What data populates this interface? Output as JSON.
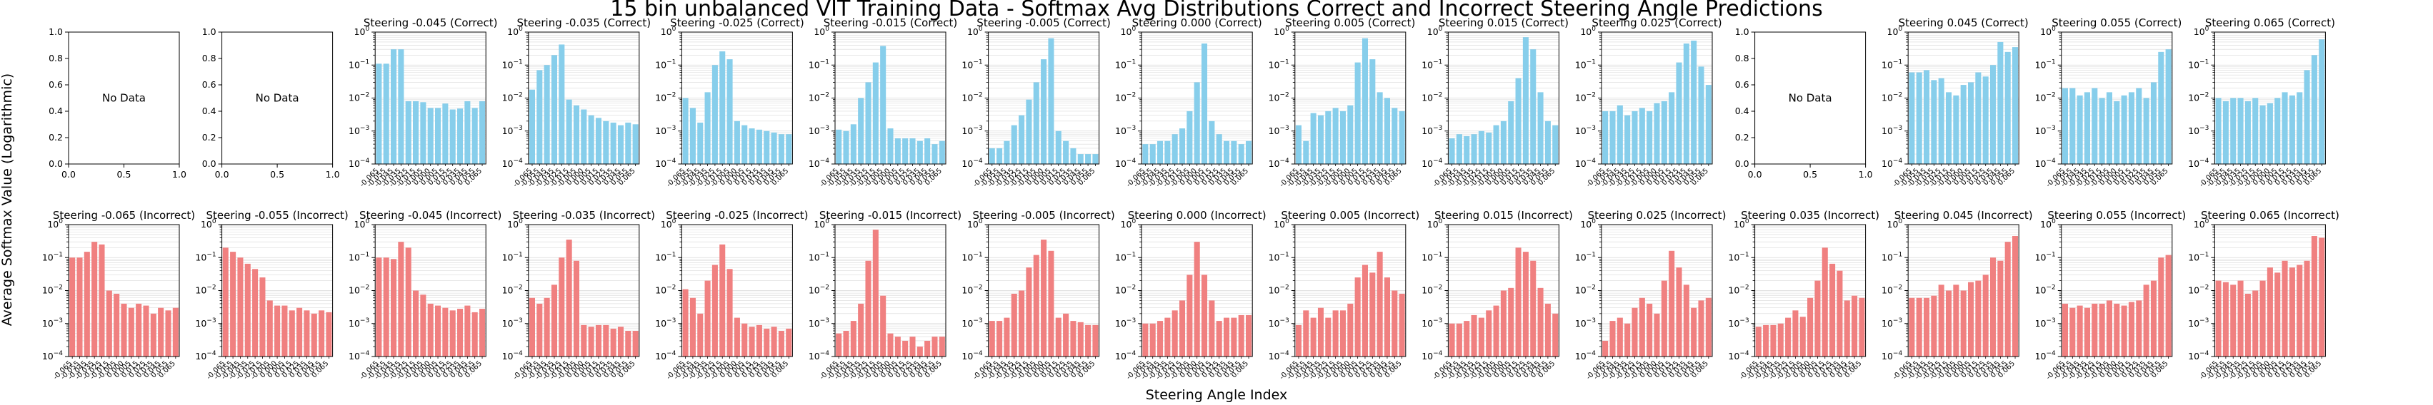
{
  "title": "15 bin unbalanced VIT Training Data - Softmax Avg Distributions Correct and Incorrect Steering Angle Predictions",
  "xlabel": "Steering Angle Index",
  "ylabel": "Average Softmax Value (Logarithmic)",
  "colors": {
    "correct": "#87ceeb",
    "incorrect": "#f08080",
    "grid": "#d9d9d9"
  },
  "x_tick_labels": [
    "-0.065",
    "-0.055",
    "-0.045",
    "-0.035",
    "-0.025",
    "-0.015",
    "-0.005",
    "0.000",
    "0.005",
    "0.015",
    "0.025",
    "0.035",
    "0.045",
    "0.055",
    "0.065"
  ],
  "no_data_text": "No Data",
  "y_exponents": [
    -4,
    -3,
    -2,
    -1,
    0
  ],
  "ylim": [
    0.0001,
    1.0
  ],
  "empty_axis_ticks": [
    "0.0",
    "0.2",
    "0.4",
    "0.6",
    "0.8",
    "1.0"
  ],
  "empty_axis_xticks": [
    "0.0",
    "0.5",
    "1.0"
  ],
  "chart_data": [
    {
      "row": "correct",
      "title": "",
      "empty": true,
      "type": "bar"
    },
    {
      "row": "correct",
      "title": "",
      "empty": true,
      "type": "bar"
    },
    {
      "row": "correct",
      "title": "Steering -0.045 (Correct)",
      "empty": false,
      "type": "bar",
      "values": [
        0.11,
        0.11,
        0.3,
        0.3,
        0.008,
        0.008,
        0.0075,
        0.005,
        0.005,
        0.0068,
        0.0045,
        0.0048,
        0.008,
        0.005,
        0.008
      ]
    },
    {
      "row": "correct",
      "title": "Steering -0.035 (Correct)",
      "empty": false,
      "type": "bar",
      "values": [
        0.018,
        0.07,
        0.1,
        0.2,
        0.42,
        0.009,
        0.006,
        0.0045,
        0.003,
        0.0025,
        0.002,
        0.0018,
        0.0015,
        0.0018,
        0.0016
      ]
    },
    {
      "row": "correct",
      "title": "Steering -0.025 (Correct)",
      "empty": false,
      "type": "bar",
      "values": [
        0.01,
        0.005,
        0.0018,
        0.015,
        0.1,
        0.26,
        0.15,
        0.002,
        0.0015,
        0.0012,
        0.0011,
        0.001,
        0.0009,
        0.0008,
        0.0008
      ]
    },
    {
      "row": "correct",
      "title": "Steering -0.015 (Correct)",
      "empty": false,
      "type": "bar",
      "values": [
        0.0011,
        0.001,
        0.0016,
        0.01,
        0.03,
        0.12,
        0.38,
        0.0012,
        0.0006,
        0.0006,
        0.0006,
        0.0005,
        0.0006,
        0.0004,
        0.0005
      ]
    },
    {
      "row": "correct",
      "title": "Steering -0.005 (Correct)",
      "empty": false,
      "type": "bar",
      "values": [
        0.0003,
        0.0003,
        0.0005,
        0.0015,
        0.003,
        0.009,
        0.03,
        0.15,
        0.65,
        0.001,
        0.0005,
        0.0003,
        0.0002,
        0.0002,
        0.0002
      ]
    },
    {
      "row": "correct",
      "title": "Steering 0.000 (Correct)",
      "empty": false,
      "type": "bar",
      "values": [
        0.0004,
        0.0004,
        0.0005,
        0.0005,
        0.0008,
        0.0012,
        0.004,
        0.03,
        0.45,
        0.002,
        0.0008,
        0.0005,
        0.0005,
        0.0004,
        0.0005
      ]
    },
    {
      "row": "correct",
      "title": "Steering 0.005 (Correct)",
      "empty": false,
      "type": "bar",
      "values": [
        0.0015,
        0.0005,
        0.0035,
        0.003,
        0.004,
        0.005,
        0.004,
        0.006,
        0.12,
        0.65,
        0.15,
        0.015,
        0.01,
        0.005,
        0.004
      ]
    },
    {
      "row": "correct",
      "title": "Steering 0.015 (Correct)",
      "empty": false,
      "type": "bar",
      "values": [
        0.0006,
        0.0008,
        0.0007,
        0.0008,
        0.001,
        0.0009,
        0.0015,
        0.002,
        0.008,
        0.04,
        0.7,
        0.3,
        0.015,
        0.002,
        0.0015
      ]
    },
    {
      "row": "correct",
      "title": "Steering 0.025 (Correct)",
      "empty": false,
      "type": "bar",
      "values": [
        0.004,
        0.004,
        0.006,
        0.003,
        0.004,
        0.005,
        0.004,
        0.007,
        0.008,
        0.015,
        0.12,
        0.45,
        0.55,
        0.09,
        0.025
      ]
    },
    {
      "row": "correct",
      "title": "",
      "empty": true,
      "type": "bar"
    },
    {
      "row": "correct",
      "title": "Steering 0.045 (Correct)",
      "empty": false,
      "type": "bar",
      "values": [
        0.06,
        0.06,
        0.07,
        0.035,
        0.04,
        0.015,
        0.012,
        0.025,
        0.03,
        0.06,
        0.045,
        0.1,
        0.5,
        0.25,
        0.35
      ]
    },
    {
      "row": "correct",
      "title": "Steering 0.055 (Correct)",
      "empty": false,
      "type": "bar",
      "values": [
        0.02,
        0.02,
        0.012,
        0.015,
        0.02,
        0.01,
        0.015,
        0.008,
        0.012,
        0.015,
        0.02,
        0.01,
        0.03,
        0.25,
        0.3
      ]
    },
    {
      "row": "correct",
      "title": "Steering 0.065 (Correct)",
      "empty": false,
      "type": "bar",
      "values": [
        0.01,
        0.008,
        0.01,
        0.01,
        0.008,
        0.01,
        0.006,
        0.007,
        0.01,
        0.015,
        0.012,
        0.015,
        0.07,
        0.2,
        0.6
      ]
    },
    {
      "row": "incorrect",
      "title": "Steering -0.065 (Incorrect)",
      "empty": false,
      "type": "bar",
      "values": [
        0.1,
        0.1,
        0.15,
        0.3,
        0.25,
        0.01,
        0.008,
        0.004,
        0.003,
        0.004,
        0.0035,
        0.002,
        0.003,
        0.0025,
        0.003
      ]
    },
    {
      "row": "incorrect",
      "title": "Steering -0.055 (Incorrect)",
      "empty": false,
      "type": "bar",
      "values": [
        0.2,
        0.15,
        0.1,
        0.065,
        0.045,
        0.025,
        0.005,
        0.0035,
        0.0035,
        0.0025,
        0.003,
        0.0025,
        0.002,
        0.0025,
        0.0022
      ]
    },
    {
      "row": "incorrect",
      "title": "Steering -0.045 (Incorrect)",
      "empty": false,
      "type": "bar",
      "values": [
        0.1,
        0.1,
        0.09,
        0.3,
        0.2,
        0.01,
        0.0075,
        0.004,
        0.0035,
        0.003,
        0.0025,
        0.0028,
        0.0035,
        0.0022,
        0.0028
      ]
    },
    {
      "row": "incorrect",
      "title": "Steering -0.035 (Incorrect)",
      "empty": false,
      "type": "bar",
      "values": [
        0.006,
        0.004,
        0.006,
        0.015,
        0.1,
        0.35,
        0.08,
        0.0009,
        0.0008,
        0.0009,
        0.0009,
        0.0007,
        0.0008,
        0.0006,
        0.0006
      ]
    },
    {
      "row": "incorrect",
      "title": "Steering -0.025 (Incorrect)",
      "empty": false,
      "type": "bar",
      "values": [
        0.011,
        0.006,
        0.002,
        0.02,
        0.06,
        0.25,
        0.045,
        0.0015,
        0.001,
        0.0008,
        0.0009,
        0.0007,
        0.0008,
        0.0006,
        0.0007
      ]
    },
    {
      "row": "incorrect",
      "title": "Steering -0.015 (Incorrect)",
      "empty": false,
      "type": "bar",
      "values": [
        0.0005,
        0.0006,
        0.0012,
        0.004,
        0.08,
        0.7,
        0.007,
        0.0005,
        0.0004,
        0.0003,
        0.0004,
        0.0002,
        0.0003,
        0.0004,
        0.0004
      ]
    },
    {
      "row": "incorrect",
      "title": "Steering -0.005 (Incorrect)",
      "empty": false,
      "type": "bar",
      "values": [
        0.0012,
        0.0012,
        0.0015,
        0.008,
        0.01,
        0.05,
        0.12,
        0.35,
        0.16,
        0.0015,
        0.002,
        0.0012,
        0.0011,
        0.0009,
        0.0009
      ]
    },
    {
      "row": "incorrect",
      "title": "Steering 0.000 (Incorrect)",
      "empty": false,
      "type": "bar",
      "values": [
        0.001,
        0.001,
        0.0012,
        0.0015,
        0.0025,
        0.005,
        0.03,
        0.3,
        0.03,
        0.005,
        0.0012,
        0.0015,
        0.0015,
        0.0018,
        0.0018
      ]
    },
    {
      "row": "incorrect",
      "title": "Steering 0.005 (Incorrect)",
      "empty": false,
      "type": "bar",
      "values": [
        0.0009,
        0.0025,
        0.0015,
        0.003,
        0.0015,
        0.0025,
        0.0025,
        0.004,
        0.025,
        0.06,
        0.035,
        0.15,
        0.025,
        0.01,
        0.008
      ]
    },
    {
      "row": "incorrect",
      "title": "Steering 0.015 (Incorrect)",
      "empty": false,
      "type": "bar",
      "values": [
        0.001,
        0.001,
        0.0012,
        0.0018,
        0.0015,
        0.0025,
        0.0035,
        0.01,
        0.012,
        0.2,
        0.15,
        0.08,
        0.012,
        0.004,
        0.002
      ]
    },
    {
      "row": "incorrect",
      "title": "Steering 0.025 (Incorrect)",
      "empty": false,
      "type": "bar",
      "values": [
        0.0003,
        0.0012,
        0.0015,
        0.001,
        0.003,
        0.006,
        0.004,
        0.002,
        0.02,
        0.16,
        0.05,
        0.015,
        0.003,
        0.005,
        0.006
      ]
    },
    {
      "row": "incorrect",
      "title": "Steering 0.035 (Incorrect)",
      "empty": false,
      "type": "bar",
      "values": [
        0.0008,
        0.0009,
        0.0009,
        0.001,
        0.0015,
        0.0025,
        0.0016,
        0.006,
        0.02,
        0.2,
        0.065,
        0.04,
        0.005,
        0.007,
        0.006
      ]
    },
    {
      "row": "incorrect",
      "title": "Steering 0.045 (Incorrect)",
      "empty": false,
      "type": "bar",
      "values": [
        0.006,
        0.006,
        0.006,
        0.007,
        0.015,
        0.01,
        0.015,
        0.01,
        0.018,
        0.02,
        0.03,
        0.1,
        0.08,
        0.3,
        0.45
      ]
    },
    {
      "row": "incorrect",
      "title": "Steering 0.055 (Incorrect)",
      "empty": false,
      "type": "bar",
      "values": [
        0.004,
        0.003,
        0.0035,
        0.003,
        0.004,
        0.004,
        0.005,
        0.004,
        0.0035,
        0.0045,
        0.005,
        0.015,
        0.02,
        0.1,
        0.12
      ]
    },
    {
      "row": "incorrect",
      "title": "Steering 0.065 (Incorrect)",
      "empty": false,
      "type": "bar",
      "values": [
        0.02,
        0.018,
        0.015,
        0.02,
        0.008,
        0.01,
        0.02,
        0.05,
        0.035,
        0.08,
        0.05,
        0.06,
        0.08,
        0.45,
        0.4
      ]
    }
  ]
}
